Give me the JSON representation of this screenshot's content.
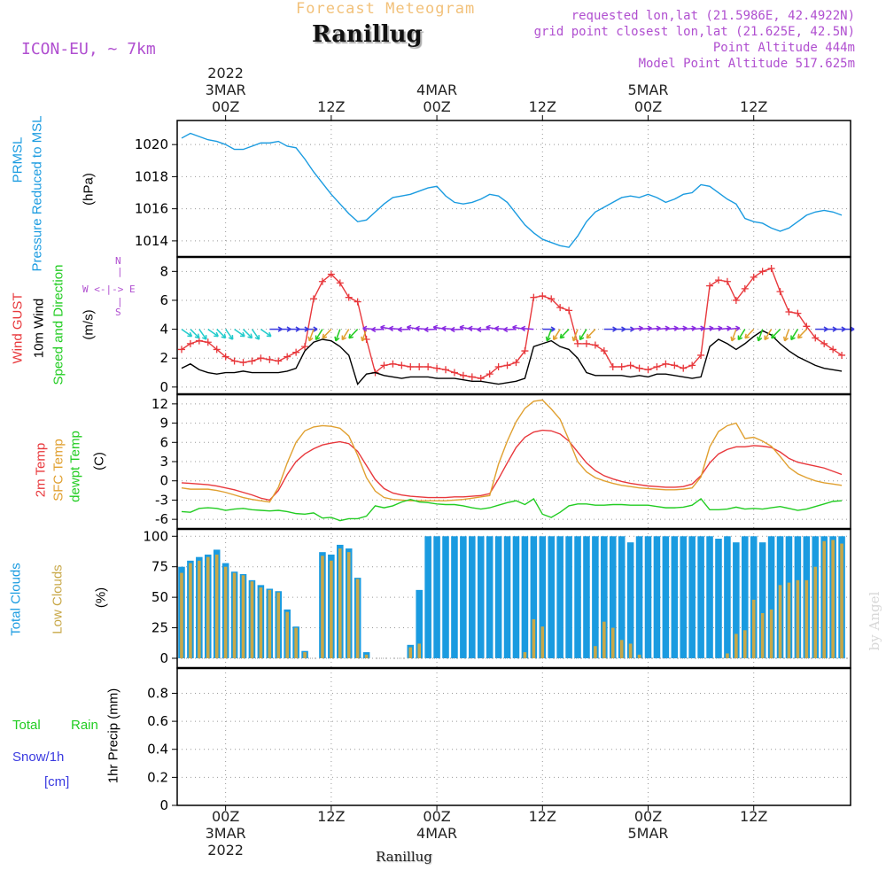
{
  "header": {
    "chart_type_title": "Forecast Meteogram",
    "location_name": "Ranillug",
    "model": "ICON-EU, ~ 7km",
    "requested": "requested lon,lat (21.5986E, 42.4922N)",
    "grid_point": "grid point closest lon,lat (21.625E, 42.5N)",
    "point_altitude": "Point Altitude 444m",
    "model_altitude": "Model Point Altitude 517.625m",
    "footer_name": "Ranillug",
    "watermark": "by Angel"
  },
  "time_axis": {
    "top_labels": [
      {
        "h": 0,
        "lines": [
          "2022",
          "3MAR",
          "00Z"
        ]
      },
      {
        "h": 12,
        "lines": [
          "12Z"
        ]
      },
      {
        "h": 24,
        "lines": [
          "4MAR",
          "00Z"
        ]
      },
      {
        "h": 36,
        "lines": [
          "12Z"
        ]
      },
      {
        "h": 48,
        "lines": [
          "5MAR",
          "00Z"
        ]
      },
      {
        "h": 60,
        "lines": [
          "12Z"
        ]
      }
    ],
    "bottom_labels": [
      {
        "h": 0,
        "lines": [
          "00Z",
          "3MAR",
          "2022"
        ]
      },
      {
        "h": 12,
        "lines": [
          "12Z"
        ]
      },
      {
        "h": 24,
        "lines": [
          "00Z",
          "4MAR"
        ]
      },
      {
        "h": 36,
        "lines": [
          "12Z"
        ]
      },
      {
        "h": 48,
        "lines": [
          "00Z",
          "5MAR"
        ]
      },
      {
        "h": 60,
        "lines": [
          "12Z"
        ]
      }
    ],
    "x_range_hours": [
      -5.5,
      71
    ]
  },
  "panel_labels": {
    "pressure": {
      "name": "PRMSL",
      "desc": "Pressure Reduced to MSL",
      "unit": "(hPa)"
    },
    "wind": {
      "gust": "Wind GUST",
      "wind10m": "10m Wind",
      "speed_dir": "Speed and Direction",
      "unit": "(m/s)",
      "compass_n": "N",
      "compass_s": "S",
      "compass_we": "W <-|-> E"
    },
    "temp": {
      "t2m": "2m Temp",
      "sfc": "SFC Temp",
      "dew": "dewpt Temp",
      "unit": "(C)"
    },
    "cloud": {
      "total": "Total Clouds",
      "low": "Low Clouds",
      "unit": "(%)"
    },
    "precip": {
      "total": "Total",
      "rain": "Rain",
      "snow": "Snow/1h",
      "snow_unit": "[cm]",
      "desc": "1hr Precip (mm)"
    }
  },
  "colors": {
    "pressure": "#1a9be0",
    "gust": "#e8383c",
    "wind": "#000000",
    "temp": "#e8383c",
    "sfc": "#e0a030",
    "dew": "#22cc22",
    "total_cloud": "#1a9be0",
    "low_cloud": "#c8a848",
    "rain": "#22cc22",
    "snow": "#3a3ae0",
    "purple": "#b04fd0"
  },
  "chart_data": [
    {
      "type": "line",
      "title": "PRMSL Pressure Reduced to MSL",
      "ylabel": "(hPa)",
      "ylim": [
        1013,
        1021.5
      ],
      "yticks": [
        1014,
        1016,
        1018,
        1020
      ],
      "x": [
        -5,
        -4,
        -3,
        -2,
        -1,
        0,
        1,
        2,
        3,
        4,
        5,
        6,
        7,
        8,
        9,
        10,
        11,
        12,
        13,
        14,
        15,
        16,
        17,
        18,
        19,
        20,
        21,
        22,
        23,
        24,
        25,
        26,
        27,
        28,
        29,
        30,
        31,
        32,
        33,
        34,
        35,
        36,
        37,
        38,
        39,
        40,
        41,
        42,
        43,
        44,
        45,
        46,
        47,
        48,
        49,
        50,
        51,
        52,
        53,
        54,
        55,
        56,
        57,
        58,
        59,
        60,
        61,
        62,
        63,
        64,
        65,
        66,
        67,
        68,
        69,
        70
      ],
      "values": [
        1020.4,
        1020.7,
        1020.5,
        1020.3,
        1020.2,
        1020.0,
        1019.7,
        1019.7,
        1019.9,
        1020.1,
        1020.1,
        1020.2,
        1019.9,
        1019.8,
        1019.1,
        1018.3,
        1017.6,
        1016.9,
        1016.3,
        1015.7,
        1015.2,
        1015.3,
        1015.8,
        1016.3,
        1016.7,
        1016.8,
        1016.9,
        1017.1,
        1017.3,
        1017.4,
        1016.8,
        1016.4,
        1016.3,
        1016.4,
        1016.6,
        1016.9,
        1016.8,
        1016.4,
        1015.7,
        1015.0,
        1014.5,
        1014.1,
        1013.9,
        1013.7,
        1013.6,
        1014.3,
        1015.2,
        1015.8,
        1016.1,
        1016.4,
        1016.7,
        1016.8,
        1016.7,
        1016.9,
        1016.7,
        1016.4,
        1016.6,
        1016.9,
        1017.0,
        1017.5,
        1017.4,
        1017.0,
        1016.6,
        1016.3,
        1015.4,
        1015.2,
        1015.1,
        1014.8,
        1014.6,
        1014.8,
        1015.2,
        1015.6,
        1015.8,
        1015.9,
        1015.8,
        1015.6
      ]
    },
    {
      "type": "line",
      "title": "Wind GUST / 10m Wind Speed and Direction",
      "ylabel": "(m/s)",
      "ylim": [
        -0.5,
        9
      ],
      "yticks": [
        0,
        2,
        4,
        6,
        8
      ],
      "x": [
        -5,
        -4,
        -3,
        -2,
        -1,
        0,
        1,
        2,
        3,
        4,
        5,
        6,
        7,
        8,
        9,
        10,
        11,
        12,
        13,
        14,
        15,
        16,
        17,
        18,
        19,
        20,
        21,
        22,
        23,
        24,
        25,
        26,
        27,
        28,
        29,
        30,
        31,
        32,
        33,
        34,
        35,
        36,
        37,
        38,
        39,
        40,
        41,
        42,
        43,
        44,
        45,
        46,
        47,
        48,
        49,
        50,
        51,
        52,
        53,
        54,
        55,
        56,
        57,
        58,
        59,
        60,
        61,
        62,
        63,
        64,
        65,
        66,
        67,
        68,
        69,
        70
      ],
      "series": [
        {
          "name": "Wind GUST",
          "values": [
            2.6,
            3.0,
            3.2,
            3.1,
            2.6,
            2.1,
            1.8,
            1.7,
            1.8,
            2.0,
            1.9,
            1.8,
            2.1,
            2.4,
            2.8,
            6.1,
            7.3,
            7.8,
            7.2,
            6.2,
            5.9,
            3.3,
            1.0,
            1.5,
            1.6,
            1.5,
            1.4,
            1.4,
            1.4,
            1.3,
            1.2,
            1.0,
            0.8,
            0.7,
            0.6,
            0.9,
            1.4,
            1.5,
            1.7,
            2.5,
            6.2,
            6.3,
            6.1,
            5.5,
            5.3,
            3.0,
            3.0,
            2.9,
            2.5,
            1.4,
            1.4,
            1.5,
            1.3,
            1.2,
            1.4,
            1.6,
            1.5,
            1.3,
            1.5,
            2.2,
            7.0,
            7.4,
            7.3,
            6.0,
            6.8,
            7.6,
            8.0,
            8.2,
            6.6,
            5.2,
            5.1,
            4.2,
            3.4,
            3.0,
            2.6,
            2.2
          ]
        },
        {
          "name": "10m Wind",
          "values": [
            1.3,
            1.6,
            1.2,
            1.0,
            0.9,
            1.0,
            1.0,
            1.1,
            1.0,
            1.0,
            1.0,
            1.0,
            1.1,
            1.3,
            2.5,
            3.1,
            3.3,
            3.2,
            2.8,
            2.2,
            0.2,
            0.9,
            1.0,
            0.8,
            0.7,
            0.6,
            0.7,
            0.7,
            0.7,
            0.6,
            0.6,
            0.6,
            0.5,
            0.4,
            0.4,
            0.3,
            0.2,
            0.3,
            0.4,
            0.6,
            2.8,
            3.0,
            3.2,
            2.8,
            2.6,
            2.0,
            1.0,
            0.8,
            0.8,
            0.8,
            0.8,
            0.7,
            0.8,
            0.7,
            0.9,
            0.9,
            0.8,
            0.7,
            0.6,
            0.7,
            2.8,
            3.3,
            3.0,
            2.6,
            3.0,
            3.5,
            3.9,
            3.6,
            3.0,
            2.5,
            2.1,
            1.8,
            1.5,
            1.3,
            1.2,
            1.1
          ]
        }
      ]
    },
    {
      "type": "line",
      "title": "2m Temp / SFC Temp / dewpt Temp",
      "ylabel": "(C)",
      "ylim": [
        -7.5,
        13.5
      ],
      "yticks": [
        -6,
        -3,
        0,
        3,
        6,
        9,
        12
      ],
      "x": [
        -5,
        -4,
        -3,
        -2,
        -1,
        0,
        1,
        2,
        3,
        4,
        5,
        6,
        7,
        8,
        9,
        10,
        11,
        12,
        13,
        14,
        15,
        16,
        17,
        18,
        19,
        20,
        21,
        22,
        23,
        24,
        25,
        26,
        27,
        28,
        29,
        30,
        31,
        32,
        33,
        34,
        35,
        36,
        37,
        38,
        39,
        40,
        41,
        42,
        43,
        44,
        45,
        46,
        47,
        48,
        49,
        50,
        51,
        52,
        53,
        54,
        55,
        56,
        57,
        58,
        59,
        60,
        61,
        62,
        63,
        64,
        65,
        66,
        67,
        68,
        69,
        70
      ],
      "series": [
        {
          "name": "2m Temp",
          "values": [
            -0.3,
            -0.4,
            -0.5,
            -0.6,
            -0.8,
            -1.1,
            -1.4,
            -1.8,
            -2.2,
            -2.7,
            -3.0,
            -1.5,
            1.0,
            3.0,
            4.2,
            5.0,
            5.6,
            5.9,
            6.1,
            5.8,
            4.6,
            2.4,
            0.2,
            -1.2,
            -1.9,
            -2.2,
            -2.4,
            -2.5,
            -2.6,
            -2.6,
            -2.6,
            -2.5,
            -2.5,
            -2.4,
            -2.3,
            -2.0,
            0.3,
            2.8,
            5.2,
            6.8,
            7.6,
            7.9,
            7.8,
            7.3,
            6.2,
            4.5,
            2.8,
            1.6,
            0.8,
            0.3,
            -0.1,
            -0.4,
            -0.6,
            -0.8,
            -0.9,
            -1.0,
            -1.0,
            -0.9,
            -0.5,
            0.8,
            2.8,
            4.2,
            4.9,
            5.3,
            5.3,
            5.5,
            5.4,
            5.2,
            4.5,
            3.5,
            2.9,
            2.6,
            2.3,
            2.0,
            1.5,
            1.0
          ]
        },
        {
          "name": "SFC Temp",
          "values": [
            -1.1,
            -1.3,
            -1.3,
            -1.3,
            -1.5,
            -1.8,
            -2.2,
            -2.6,
            -2.9,
            -3.1,
            -3.3,
            -1.0,
            2.8,
            6.0,
            7.8,
            8.4,
            8.6,
            8.5,
            8.2,
            7.0,
            4.0,
            0.5,
            -1.6,
            -2.6,
            -2.9,
            -3.0,
            -3.1,
            -3.1,
            -3.1,
            -3.1,
            -3.1,
            -3.0,
            -2.9,
            -2.7,
            -2.5,
            -2.3,
            2.6,
            6.2,
            9.2,
            11.3,
            12.4,
            12.6,
            11.2,
            9.6,
            6.4,
            3.0,
            1.4,
            0.5,
            0.0,
            -0.4,
            -0.7,
            -0.9,
            -1.1,
            -1.2,
            -1.3,
            -1.4,
            -1.4,
            -1.3,
            -1.1,
            0.6,
            5.3,
            7.7,
            8.6,
            9.0,
            6.6,
            6.8,
            6.2,
            5.4,
            3.8,
            2.1,
            1.1,
            0.5,
            0.0,
            -0.3,
            -0.5,
            -0.7
          ]
        },
        {
          "name": "dewpt Temp",
          "values": [
            -4.8,
            -4.9,
            -4.3,
            -4.2,
            -4.3,
            -4.6,
            -4.4,
            -4.3,
            -4.5,
            -4.6,
            -4.7,
            -4.6,
            -4.8,
            -5.1,
            -5.2,
            -5.0,
            -5.8,
            -5.7,
            -6.2,
            -5.9,
            -5.9,
            -5.5,
            -3.9,
            -4.2,
            -3.9,
            -3.3,
            -2.9,
            -3.3,
            -3.4,
            -3.6,
            -3.7,
            -3.7,
            -3.9,
            -4.2,
            -4.4,
            -4.2,
            -3.8,
            -3.4,
            -3.1,
            -3.7,
            -2.8,
            -5.2,
            -5.7,
            -4.9,
            -3.9,
            -3.6,
            -3.6,
            -3.8,
            -3.8,
            -3.7,
            -3.7,
            -3.8,
            -3.8,
            -3.8,
            -4.0,
            -4.2,
            -4.2,
            -4.1,
            -3.8,
            -2.8,
            -4.5,
            -4.5,
            -4.4,
            -4.1,
            -4.4,
            -4.3,
            -4.4,
            -4.2,
            -4.0,
            -4.3,
            -4.6,
            -4.4,
            -4.0,
            -3.6,
            -3.2,
            -3.1
          ]
        }
      ]
    },
    {
      "type": "bar",
      "title": "Total Clouds / Low Clouds",
      "ylabel": "(%)",
      "ylim": [
        -8,
        106
      ],
      "yticks": [
        0,
        25,
        50,
        75,
        100
      ],
      "x": [
        -5,
        -4,
        -3,
        -2,
        -1,
        0,
        1,
        2,
        3,
        4,
        5,
        6,
        7,
        8,
        9,
        10,
        11,
        12,
        13,
        14,
        15,
        16,
        17,
        18,
        19,
        20,
        21,
        22,
        23,
        24,
        25,
        26,
        27,
        28,
        29,
        30,
        31,
        32,
        33,
        34,
        35,
        36,
        37,
        38,
        39,
        40,
        41,
        42,
        43,
        44,
        45,
        46,
        47,
        48,
        49,
        50,
        51,
        52,
        53,
        54,
        55,
        56,
        57,
        58,
        59,
        60,
        61,
        62,
        63,
        64,
        65,
        66,
        67,
        68,
        69,
        70
      ],
      "series": [
        {
          "name": "Total Clouds",
          "values": [
            75,
            80,
            83,
            85,
            89,
            78,
            71,
            69,
            64,
            60,
            57,
            55,
            40,
            26,
            6,
            0,
            87,
            85,
            93,
            90,
            66,
            5,
            0,
            0,
            0,
            0,
            11,
            56,
            100,
            100,
            100,
            100,
            100,
            100,
            100,
            100,
            100,
            100,
            100,
            100,
            100,
            100,
            100,
            100,
            100,
            100,
            100,
            100,
            100,
            100,
            100,
            95,
            100,
            100,
            100,
            100,
            100,
            100,
            100,
            100,
            100,
            98,
            100,
            95,
            100,
            100,
            95,
            100,
            100,
            100,
            100,
            100,
            100,
            100,
            100,
            100
          ]
        },
        {
          "name": "Low Clouds",
          "values": [
            70,
            78,
            80,
            83,
            85,
            75,
            70,
            68,
            63,
            58,
            56,
            54,
            38,
            25,
            5,
            0,
            84,
            80,
            90,
            87,
            65,
            3,
            0,
            0,
            0,
            0,
            9,
            12,
            0,
            0,
            0,
            0,
            0,
            0,
            0,
            0,
            0,
            0,
            0,
            5,
            32,
            26,
            0,
            0,
            0,
            0,
            0,
            10,
            30,
            25,
            15,
            12,
            3,
            0,
            0,
            0,
            0,
            0,
            0,
            0,
            0,
            0,
            4,
            20,
            23,
            48,
            37,
            40,
            60,
            62,
            64,
            64,
            75,
            96,
            97,
            94
          ]
        }
      ]
    },
    {
      "type": "bar",
      "title": "1hr Precip (mm)",
      "ylabel": "1hr Precip (mm)",
      "ylim": [
        0,
        0.98
      ],
      "yticks": [
        0,
        0.2,
        0.4,
        0.6,
        0.8
      ],
      "series": [
        {
          "name": "Total Rain",
          "values": []
        },
        {
          "name": "Snow/1h [cm]",
          "values": []
        }
      ]
    }
  ]
}
